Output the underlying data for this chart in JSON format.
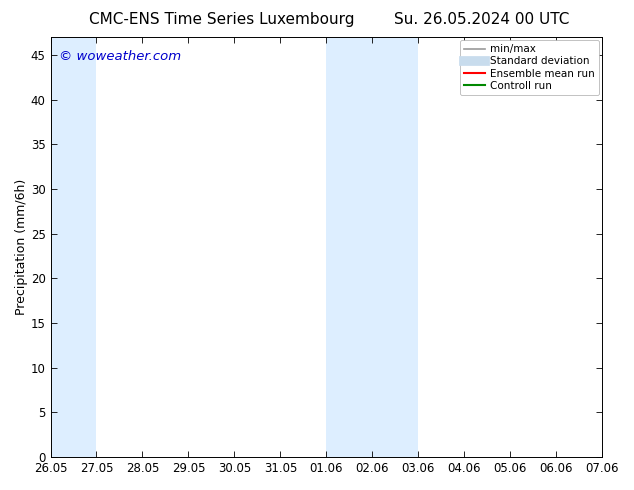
{
  "title_left": "CMC-ENS Time Series Luxembourg",
  "title_right": "Su. 26.05.2024 00 UTC",
  "ylabel": "Precipitation (mm/6h)",
  "xlabel": "",
  "watermark": "© woweather.com",
  "watermark_color": "#0000cc",
  "background_color": "#ffffff",
  "plot_bg_color": "#ffffff",
  "ylim": [
    0,
    47
  ],
  "yticks": [
    0,
    5,
    10,
    15,
    20,
    25,
    30,
    35,
    40,
    45
  ],
  "x_start": 0,
  "x_end": 12,
  "xtick_labels": [
    "26.05",
    "27.05",
    "28.05",
    "29.05",
    "30.05",
    "31.05",
    "01.06",
    "02.06",
    "03.06",
    "04.06",
    "05.06",
    "06.06",
    "07.06"
  ],
  "xtick_positions": [
    0,
    1,
    2,
    3,
    4,
    5,
    6,
    7,
    8,
    9,
    10,
    11,
    12
  ],
  "shaded_regions": [
    {
      "x_start": 0,
      "x_end": 1,
      "color": "#ddeeff",
      "alpha": 1.0
    },
    {
      "x_start": 6,
      "x_end": 8,
      "color": "#ddeeff",
      "alpha": 1.0
    }
  ],
  "legend_items": [
    {
      "label": "min/max",
      "color": "#999999",
      "lw": 1.2,
      "style": "solid"
    },
    {
      "label": "Standard deviation",
      "color": "#c8dced",
      "lw": 7,
      "style": "solid"
    },
    {
      "label": "Ensemble mean run",
      "color": "#ff0000",
      "lw": 1.5,
      "style": "solid"
    },
    {
      "label": "Controll run",
      "color": "#008800",
      "lw": 1.5,
      "style": "solid"
    }
  ],
  "title_fontsize": 11,
  "axis_label_fontsize": 9,
  "tick_fontsize": 8.5,
  "legend_fontsize": 7.5
}
